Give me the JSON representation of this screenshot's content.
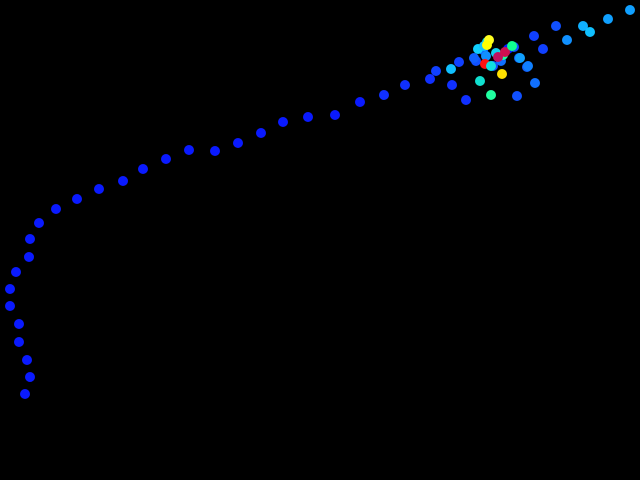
{
  "scene": {
    "background": "#000000",
    "description_shape": "trail-of-colored-dots",
    "dots": [
      {
        "c": "#0a1aff"
      },
      {
        "c": "#0a1aff"
      },
      {
        "c": "#0a1aff"
      },
      {
        "c": "#0a1aff"
      },
      {
        "c": "#0a1aff"
      },
      {
        "c": "#0a1aff"
      },
      {
        "c": "#0a1aff"
      },
      {
        "c": "#0a1aff"
      },
      {
        "c": "#0a1aff"
      },
      {
        "c": "#0a1aff"
      },
      {
        "c": "#0a1aff"
      },
      {
        "c": "#0a1aff"
      },
      {
        "c": "#0a1aff"
      },
      {
        "c": "#0a1aff"
      },
      {
        "c": "#0a1aff"
      },
      {
        "c": "#0a1aff"
      },
      {
        "c": "#0a1aff"
      },
      {
        "c": "#0a1aff"
      },
      {
        "c": "#0a1aff"
      },
      {
        "c": "#0a1aff"
      },
      {
        "c": "#0a1aff"
      },
      {
        "c": "#0a1aff"
      },
      {
        "c": "#0a1aff"
      },
      {
        "c": "#0a1aff"
      },
      {
        "c": "#0a1aff"
      },
      {
        "c": "#1030ff"
      },
      {
        "c": "#1030ff"
      },
      {
        "c": "#1030ff"
      },
      {
        "c": "#1030ff"
      },
      {
        "c": "#1030ff"
      },
      {
        "c": "#1040ff"
      },
      {
        "c": "#1040ff"
      },
      {
        "c": "#1050ff"
      },
      {
        "c": "#1060ff"
      },
      {
        "c": "#1060ff"
      },
      {
        "c": "#1050ff"
      },
      {
        "c": "#0a1aff"
      },
      {
        "c": "#1050ff"
      },
      {
        "c": "#1060ff"
      },
      {
        "c": "#1060ff"
      },
      {
        "c": "#1070ff"
      },
      {
        "c": "#1050ff"
      },
      {
        "c": "#1040ff"
      },
      {
        "c": "#1040ff"
      },
      {
        "c": "#1050ff"
      },
      {
        "c": "#1090ff"
      },
      {
        "c": "#10b0ff"
      },
      {
        "c": "#10c0ff"
      },
      {
        "c": "#10a0ff"
      },
      {
        "c": "#10a0ff"
      },
      {
        "c": "#10c0ff"
      },
      {
        "c": "#10e0d0"
      },
      {
        "c": "#20ffa0"
      },
      {
        "c": "#10d0ff"
      },
      {
        "c": "#10e0e0"
      },
      {
        "c": "#10c0ff"
      },
      {
        "c": "#1090ff"
      },
      {
        "c": "#1070ff"
      },
      {
        "c": "#10d0f0"
      },
      {
        "c": "#20ffa0"
      },
      {
        "c": "#ffe000"
      },
      {
        "c": "#ffff20"
      },
      {
        "c": "#ff1010"
      },
      {
        "c": "#c01060"
      },
      {
        "c": "#d01050"
      },
      {
        "c": "#ffff00"
      },
      {
        "c": "#10ff90"
      },
      {
        "c": "#10e0e0"
      },
      {
        "c": "#10a0ff"
      },
      {
        "c": "#1080ff"
      }
    ]
  }
}
